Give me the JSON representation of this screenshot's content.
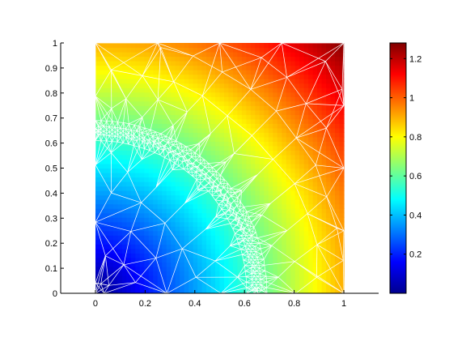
{
  "chart_data": {
    "type": "heatmap",
    "title": "",
    "xlabel": "",
    "ylabel": "",
    "description_of_field": "radial distance from origin, value ~= sqrt(x^2 + y^2) * 0.9 in data units",
    "x_axis": {
      "range": [
        -0.14,
        1.14
      ],
      "ticks": [
        0,
        0.2,
        0.4,
        0.6,
        0.8,
        1
      ],
      "tick_labels": [
        "0",
        "0.2",
        "0.4",
        "0.6",
        "0.8",
        "1"
      ]
    },
    "y_axis": {
      "range": [
        0,
        1
      ],
      "ticks": [
        0,
        0.1,
        0.2,
        0.3,
        0.4,
        0.5,
        0.6,
        0.7,
        0.8,
        0.9,
        1
      ],
      "tick_labels": [
        "0",
        "0.1",
        "0.2",
        "0.3",
        "0.4",
        "0.5",
        "0.6",
        "0.7",
        "0.8",
        "0.9",
        "1"
      ]
    },
    "domain": {
      "x": [
        0,
        1
      ],
      "y": [
        0,
        1
      ]
    },
    "refinement_circle_radius": 0.645,
    "colorbar": {
      "range": [
        0.0,
        1.28
      ],
      "ticks": [
        0.2,
        0.4,
        0.6,
        0.8,
        1,
        1.2
      ],
      "tick_labels": [
        "0.2",
        "0.4",
        "0.6",
        "0.8",
        "1",
        "1.2"
      ],
      "colormap": "jet"
    },
    "grid": false,
    "mesh_color": "#ffffff"
  }
}
